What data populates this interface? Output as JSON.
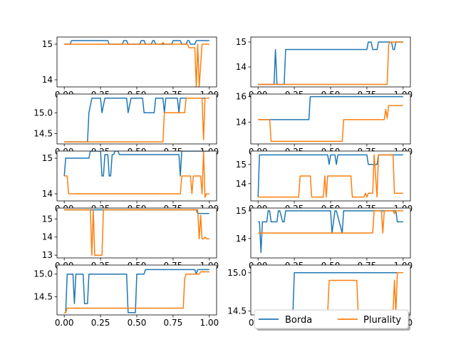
{
  "colors": {
    "borda": "#1f77b4",
    "plurality": "#ff7f0e",
    "axes": "#000000",
    "background": "#ffffff"
  },
  "legend": {
    "placement": "below bottom-right panel",
    "entries": [
      {
        "label": "Borda",
        "color": "#1f77b4"
      },
      {
        "label": "Plurality",
        "color": "#ff7f0e"
      }
    ]
  },
  "chart_data": [
    {
      "type": "line",
      "panel": "row1-left",
      "xlim": [
        -0.05,
        1.05
      ],
      "ylim": [
        13.8,
        15.2
      ],
      "xticks": [
        "0.00",
        "0.25",
        "0.50",
        "0.75",
        "1.00"
      ],
      "xtick_values": [
        0,
        0.25,
        0.5,
        0.75,
        1.0
      ],
      "yticks": [
        "14",
        "15"
      ],
      "ytick_values": [
        14,
        15
      ],
      "series": [
        {
          "name": "Borda",
          "color": "#1f77b4",
          "x": [
            0,
            0.04,
            0.05,
            0.3,
            0.31,
            0.4,
            0.41,
            0.43,
            0.44,
            0.52,
            0.53,
            0.55,
            0.56,
            0.6,
            0.61,
            0.62,
            0.63,
            0.74,
            0.75,
            0.8,
            0.81,
            0.84,
            0.85,
            0.86,
            0.87,
            0.9,
            0.91,
            1.0
          ],
          "y": [
            15,
            15,
            15.1,
            15.1,
            15.0,
            15.0,
            15.1,
            15.1,
            15.0,
            15.0,
            15.1,
            15.1,
            15.0,
            15.0,
            15.1,
            15.1,
            15.0,
            15.0,
            15.1,
            15.1,
            15.0,
            15.0,
            15.1,
            15.1,
            15.0,
            15.0,
            15.1,
            15.1
          ]
        },
        {
          "name": "Plurality",
          "color": "#ff7f0e",
          "x": [
            0,
            0.67,
            0.68,
            0.69,
            0.85,
            0.86,
            0.9,
            0.91,
            0.92,
            0.93,
            0.95,
            0.96,
            1.0
          ],
          "y": [
            15,
            15,
            15.05,
            15,
            15,
            14.9,
            14.9,
            13.8,
            15.0,
            13.8,
            15.0,
            15.0,
            15.0
          ]
        }
      ]
    },
    {
      "type": "line",
      "panel": "row1-right",
      "xlim": [
        -0.05,
        1.05
      ],
      "ylim": [
        13.2,
        15.2
      ],
      "xticks": [
        "0.00",
        "0.25",
        "0.50",
        "0.75",
        "1.00"
      ],
      "xtick_values": [
        0,
        0.25,
        0.5,
        0.75,
        1.0
      ],
      "yticks": [
        "14",
        "15"
      ],
      "ytick_values": [
        14,
        15
      ],
      "series": [
        {
          "name": "Borda",
          "color": "#1f77b4",
          "x": [
            0,
            0.11,
            0.12,
            0.13,
            0.18,
            0.19,
            0.2,
            0.75,
            0.76,
            0.78,
            0.79,
            0.82,
            0.83,
            0.92,
            0.93,
            0.94,
            0.95,
            0.96,
            1.0
          ],
          "y": [
            13.3,
            13.3,
            14.7,
            13.3,
            13.3,
            14.7,
            14.7,
            14.7,
            15.0,
            15.0,
            14.7,
            14.7,
            15.0,
            15.0,
            14.7,
            14.7,
            15.0,
            15.0,
            15.0
          ]
        },
        {
          "name": "Plurality",
          "color": "#ff7f0e",
          "x": [
            0,
            0.89,
            0.9,
            0.91,
            1.0
          ],
          "y": [
            13.3,
            13.3,
            14.9,
            15.0,
            15.0
          ]
        }
      ]
    },
    {
      "type": "line",
      "panel": "row2-left",
      "xlim": [
        -0.05,
        1.05
      ],
      "ylim": [
        14.25,
        15.45
      ],
      "xticks": [
        "0.00",
        "0.25",
        "0.50",
        "0.75",
        "1.00"
      ],
      "xtick_values": [
        0,
        0.25,
        0.5,
        0.75,
        1.0
      ],
      "yticks": [
        "14.5",
        "15.0"
      ],
      "ytick_values": [
        14.5,
        15.0
      ],
      "series": [
        {
          "name": "Borda",
          "color": "#1f77b4",
          "x": [
            0,
            0.16,
            0.17,
            0.19,
            0.25,
            0.26,
            0.28,
            0.43,
            0.44,
            0.46,
            0.54,
            0.55,
            0.62,
            0.63,
            0.68,
            0.69,
            0.7,
            0.78,
            0.79,
            0.8,
            1.0
          ],
          "y": [
            14.3,
            14.3,
            15.0,
            15.35,
            15.35,
            15.0,
            15.35,
            15.35,
            15.0,
            15.35,
            15.35,
            15.0,
            15.0,
            15.35,
            15.35,
            15.0,
            15.35,
            15.35,
            15.0,
            15.35,
            15.35
          ]
        },
        {
          "name": "Plurality",
          "color": "#ff7f0e",
          "x": [
            0,
            0.68,
            0.69,
            0.83,
            0.84,
            0.95,
            0.96,
            0.97,
            1.0
          ],
          "y": [
            14.3,
            14.3,
            15.0,
            15.0,
            15.35,
            15.35,
            14.35,
            15.35,
            15.35
          ]
        }
      ]
    },
    {
      "type": "line",
      "panel": "row2-right",
      "xlim": [
        -0.05,
        1.05
      ],
      "ylim": [
        12.3,
        16.2
      ],
      "xticks": [
        "0.00",
        "0.25",
        "0.50",
        "0.75",
        "1.00"
      ],
      "xtick_values": [
        0,
        0.25,
        0.5,
        0.75,
        1.0
      ],
      "yticks": [
        "14",
        "16"
      ],
      "ytick_values": [
        14,
        16
      ],
      "series": [
        {
          "name": "Borda",
          "color": "#1f77b4",
          "x": [
            0,
            0.35,
            0.36,
            1.0
          ],
          "y": [
            14.2,
            14.2,
            16.0,
            16.0
          ]
        },
        {
          "name": "Plurality",
          "color": "#ff7f0e",
          "x": [
            0,
            0.08,
            0.09,
            0.58,
            0.59,
            0.87,
            0.88,
            0.89,
            0.9,
            0.91,
            1.0
          ],
          "y": [
            14.2,
            14.2,
            12.5,
            12.5,
            14.2,
            14.2,
            15.0,
            14.3,
            15.3,
            15.3,
            15.3
          ]
        }
      ]
    },
    {
      "type": "line",
      "panel": "row3-left",
      "xlim": [
        -0.05,
        1.05
      ],
      "ylim": [
        13.8,
        15.2
      ],
      "xticks": [
        "0.00",
        "0.25",
        "0.50",
        "0.75",
        "1.00"
      ],
      "xtick_values": [
        0,
        0.25,
        0.5,
        0.75,
        1.0
      ],
      "yticks": [
        "14",
        "15"
      ],
      "ytick_values": [
        14,
        15
      ],
      "series": [
        {
          "name": "Borda",
          "color": "#1f77b4",
          "x": [
            0,
            0.01,
            0.02,
            0.17,
            0.18,
            0.25,
            0.26,
            0.27,
            0.28,
            0.3,
            0.31,
            0.32,
            0.33,
            0.34,
            0.35,
            0.37,
            0.38,
            0.39,
            0.42,
            0.43,
            0.79,
            0.8,
            0.81,
            1.0
          ],
          "y": [
            14.5,
            15.0,
            15.0,
            15.0,
            15.2,
            15.2,
            14.5,
            14.5,
            15.1,
            15.1,
            14.5,
            14.5,
            15.1,
            15.1,
            15.2,
            15.2,
            15.1,
            15.1,
            15.1,
            15.1,
            15.1,
            14.5,
            15.2,
            15.2
          ]
        },
        {
          "name": "Plurality",
          "color": "#ff7f0e",
          "x": [
            0,
            0.02,
            0.03,
            0.8,
            0.81,
            0.87,
            0.88,
            0.89,
            0.9,
            0.94,
            0.95,
            0.96,
            0.97,
            0.98,
            1.0
          ],
          "y": [
            14.5,
            14.5,
            14.0,
            14.0,
            14.5,
            14.5,
            14.0,
            14.5,
            14.5,
            14.5,
            14.0,
            15.2,
            13.9,
            14.0,
            14.0
          ]
        }
      ]
    },
    {
      "type": "line",
      "panel": "row3-right",
      "xlim": [
        -0.05,
        1.05
      ],
      "ylim": [
        13.1,
        15.7
      ],
      "xticks": [
        "0.00",
        "0.25",
        "0.50",
        "0.75",
        "1.00"
      ],
      "xtick_values": [
        0,
        0.25,
        0.5,
        0.75,
        1.0
      ],
      "yticks": [
        "14",
        "15"
      ],
      "ytick_values": [
        14,
        15
      ],
      "series": [
        {
          "name": "Borda",
          "color": "#1f77b4",
          "x": [
            0,
            0.01,
            0.02,
            0.48,
            0.49,
            0.5,
            0.53,
            0.54,
            0.55,
            0.56,
            0.75,
            0.76,
            0.82,
            0.83,
            0.86,
            0.87,
            1.0
          ],
          "y": [
            13.3,
            15.5,
            15.5,
            15.5,
            15.0,
            15.5,
            15.5,
            15.0,
            15.5,
            15.5,
            15.5,
            15.0,
            15.0,
            15.5,
            15.5,
            15.5,
            15.5
          ]
        },
        {
          "name": "Plurality",
          "color": "#ff7f0e",
          "x": [
            0,
            0.28,
            0.29,
            0.36,
            0.37,
            0.45,
            0.46,
            0.47,
            0.48,
            0.64,
            0.65,
            0.73,
            0.74,
            0.75,
            0.76,
            0.79,
            0.8,
            0.82,
            0.83,
            0.84,
            0.93,
            0.94,
            1.0
          ],
          "y": [
            13.3,
            13.3,
            14.4,
            14.4,
            13.3,
            13.3,
            14.4,
            13.3,
            14.4,
            14.4,
            13.3,
            13.3,
            13.5,
            13.3,
            13.5,
            13.5,
            15.5,
            13.3,
            15.5,
            15.5,
            15.5,
            13.5,
            13.5
          ]
        }
      ]
    },
    {
      "type": "line",
      "panel": "row4-left",
      "xlim": [
        -0.05,
        1.05
      ],
      "ylim": [
        12.85,
        15.6
      ],
      "xticks": [
        "0.00",
        "0.25",
        "0.50",
        "0.75",
        "1.00"
      ],
      "xtick_values": [
        0,
        0.25,
        0.5,
        0.75,
        1.0
      ],
      "yticks": [
        "13",
        "14",
        "15"
      ],
      "ytick_values": [
        13,
        14,
        15
      ],
      "series": [
        {
          "name": "Borda",
          "color": "#1f77b4",
          "x": [
            0,
            0.91,
            0.92,
            1.0
          ],
          "y": [
            15.5,
            15.5,
            15.3,
            15.3
          ]
        },
        {
          "name": "Plurality",
          "color": "#ff7f0e",
          "x": [
            0,
            0.18,
            0.19,
            0.2,
            0.21,
            0.26,
            0.27,
            0.92,
            0.93,
            0.94,
            0.95,
            0.96,
            0.97,
            0.98,
            1.0
          ],
          "y": [
            15.5,
            15.5,
            13.0,
            15.5,
            13.0,
            13.0,
            15.5,
            15.5,
            13.9,
            15.2,
            13.9,
            13.9,
            14.0,
            13.9,
            13.9
          ]
        }
      ]
    },
    {
      "type": "line",
      "panel": "row4-right",
      "xlim": [
        -0.05,
        1.05
      ],
      "ylim": [
        13.3,
        15.1
      ],
      "xticks": [
        "0.00",
        "0.25",
        "0.50",
        "0.75",
        "1.00"
      ],
      "xtick_values": [
        0,
        0.25,
        0.5,
        0.75,
        1.0
      ],
      "yticks": [
        "14",
        "15"
      ],
      "ytick_values": [
        14,
        15
      ],
      "series": [
        {
          "name": "Borda",
          "color": "#1f77b4",
          "x": [
            0,
            0.01,
            0.02,
            0.03,
            0.04,
            0.06,
            0.07,
            0.08,
            0.09,
            0.13,
            0.14,
            0.15,
            0.17,
            0.18,
            0.19,
            0.5,
            0.51,
            0.53,
            0.54,
            0.58,
            0.59,
            0.62,
            0.63,
            0.95,
            0.96,
            1.0
          ],
          "y": [
            14.6,
            14.6,
            13.5,
            14.6,
            14.6,
            14.6,
            15.0,
            15.0,
            14.6,
            14.6,
            15.0,
            15.0,
            14.6,
            14.6,
            15.0,
            15.0,
            14.2,
            15.0,
            15.0,
            14.2,
            15.0,
            15.0,
            15.0,
            15.0,
            14.6,
            14.6
          ]
        },
        {
          "name": "Plurality",
          "color": "#ff7f0e",
          "x": [
            0,
            0.79,
            0.8,
            0.85,
            0.86,
            0.87,
            0.88,
            0.93,
            0.94,
            0.95,
            1.0
          ],
          "y": [
            14.2,
            14.2,
            15.0,
            15.0,
            14.2,
            15.0,
            15.0,
            15.0,
            14.9,
            15.0,
            15.0
          ]
        }
      ]
    },
    {
      "type": "line",
      "panel": "row5-left",
      "xlim": [
        -0.05,
        1.05
      ],
      "ylim": [
        14.1,
        15.2
      ],
      "xticks": [
        "0.00",
        "0.25",
        "0.50",
        "0.75",
        "1.00"
      ],
      "xtick_values": [
        0,
        0.25,
        0.5,
        0.75,
        1.0
      ],
      "yticks": [
        "14.5",
        "15.0"
      ],
      "ytick_values": [
        14.5,
        15.0
      ],
      "series": [
        {
          "name": "Borda",
          "color": "#1f77b4",
          "x": [
            0,
            0.01,
            0.02,
            0.06,
            0.07,
            0.08,
            0.13,
            0.14,
            0.16,
            0.17,
            0.18,
            0.43,
            0.44,
            0.49,
            0.5,
            0.55,
            0.56,
            0.9,
            0.91,
            0.92,
            1.0
          ],
          "y": [
            14.15,
            14.15,
            15.0,
            15.0,
            14.35,
            15.0,
            15.0,
            14.35,
            14.35,
            15.0,
            15.0,
            15.0,
            14.15,
            14.15,
            15.0,
            15.0,
            15.1,
            15.1,
            15.0,
            15.1,
            15.1
          ]
        },
        {
          "name": "Plurality",
          "color": "#ff7f0e",
          "x": [
            0,
            0.01,
            0.02,
            0.82,
            0.83,
            0.84,
            0.85,
            0.93,
            0.94,
            1.0
          ],
          "y": [
            14.15,
            14.15,
            14.25,
            14.25,
            14.9,
            15.0,
            15.0,
            15.0,
            15.05,
            15.05
          ]
        }
      ]
    },
    {
      "type": "line",
      "panel": "row5-right",
      "xlim": [
        -0.05,
        1.05
      ],
      "ylim": [
        14.45,
        15.1
      ],
      "xticks": [
        "0.00",
        "0.25",
        "0.50",
        "0.75",
        "1.00"
      ],
      "xtick_values": [
        0,
        0.25,
        0.5,
        0.75,
        1.0
      ],
      "yticks": [
        "14.5",
        "15.0"
      ],
      "ytick_values": [
        14.5,
        15.0
      ],
      "series": [
        {
          "name": "Borda",
          "color": "#1f77b4",
          "x": [
            0,
            0.24,
            0.25,
            1.0
          ],
          "y": [
            14.48,
            14.48,
            15.0,
            15.0
          ]
        },
        {
          "name": "Plurality",
          "color": "#ff7f0e",
          "x": [
            0,
            0.48,
            0.49,
            0.68,
            0.69,
            0.93,
            0.94,
            0.95,
            0.96,
            1.0
          ],
          "y": [
            14.48,
            14.48,
            14.9,
            14.9,
            14.48,
            14.48,
            14.9,
            14.48,
            15.0,
            15.0
          ]
        }
      ]
    }
  ]
}
